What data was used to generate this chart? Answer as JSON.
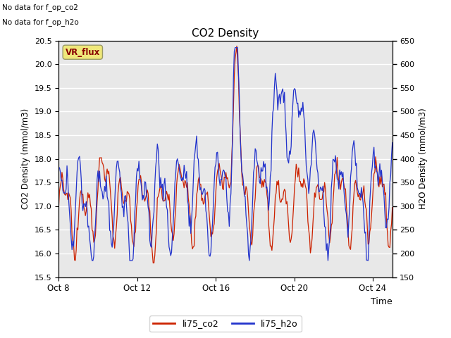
{
  "title": "CO2 Density",
  "xlabel": "Time",
  "ylabel_left": "CO2 Density (mmol/m3)",
  "ylabel_right": "H2O Density (mmol/m3)",
  "top_left_text_line1": "No data for f_op_co2",
  "top_left_text_line2": "No data for f_op_h2o",
  "legend_label_co2": "li75_co2",
  "legend_label_h2o": "li75_h2o",
  "box_label": "VR_flux",
  "ylim_left": [
    15.5,
    20.5
  ],
  "ylim_right": [
    150,
    650
  ],
  "yticks_left": [
    15.5,
    16.0,
    16.5,
    17.0,
    17.5,
    18.0,
    18.5,
    19.0,
    19.5,
    20.0,
    20.5
  ],
  "yticks_right": [
    150,
    200,
    250,
    300,
    350,
    400,
    450,
    500,
    550,
    600,
    650
  ],
  "color_co2": "#cc2200",
  "color_h2o": "#2233cc",
  "fig_facecolor": "#ffffff",
  "plot_bg_color": "#e8e8e8",
  "grid_color": "#ffffff",
  "xtick_labels": [
    "Oct 8",
    "Oct 12",
    "Oct 16",
    "Oct 20",
    "Oct 24"
  ],
  "xtick_positions": [
    0,
    4,
    8,
    12,
    16
  ],
  "xlim": [
    0,
    17
  ]
}
